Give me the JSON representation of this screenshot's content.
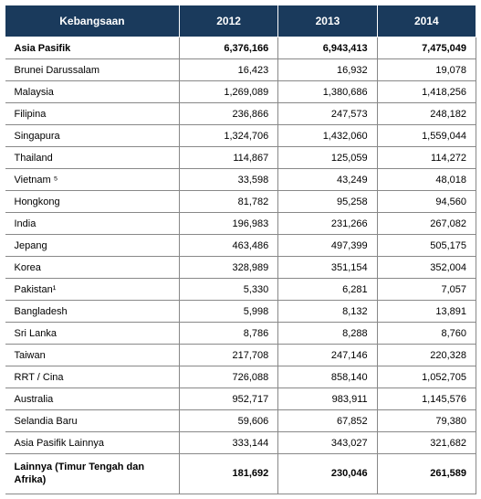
{
  "table": {
    "header_bg": "#1a3a5c",
    "header_fg": "#ffffff",
    "border_color": "#888888",
    "columns": [
      "Kebangsaan",
      "2012",
      "2013",
      "2014"
    ],
    "rows": [
      {
        "label": "Asia Pasifik",
        "v2012": "6,376,166",
        "v2013": "6,943,413",
        "v2014": "7,475,049",
        "bold": true
      },
      {
        "label": "Brunei  Darussalam",
        "v2012": "16,423",
        "v2013": "16,932",
        "v2014": "19,078",
        "bold": false
      },
      {
        "label": "Malaysia",
        "v2012": "1,269,089",
        "v2013": "1,380,686",
        "v2014": "1,418,256",
        "bold": false
      },
      {
        "label": "Filipina",
        "v2012": "236,866",
        "v2013": "247,573",
        "v2014": "248,182",
        "bold": false
      },
      {
        "label": "Singapura",
        "v2012": "1,324,706",
        "v2013": "1,432,060",
        "v2014": "1,559,044",
        "bold": false
      },
      {
        "label": "Thailand",
        "v2012": "114,867",
        "v2013": "125,059",
        "v2014": "114,272",
        "bold": false
      },
      {
        "label": "Vietnam ⁵",
        "v2012": "33,598",
        "v2013": "43,249",
        "v2014": "48,018",
        "bold": false
      },
      {
        "label": "Hongkong",
        "v2012": "81,782",
        "v2013": "95,258",
        "v2014": "94,560",
        "bold": false
      },
      {
        "label": "India",
        "v2012": "196,983",
        "v2013": "231,266",
        "v2014": "267,082",
        "bold": false
      },
      {
        "label": "Jepang",
        "v2012": "463,486",
        "v2013": "497,399",
        "v2014": "505,175",
        "bold": false
      },
      {
        "label": "Korea",
        "v2012": "328,989",
        "v2013": "351,154",
        "v2014": "352,004",
        "bold": false
      },
      {
        "label": "Pakistan¹",
        "v2012": "5,330",
        "v2013": "6,281",
        "v2014": "7,057",
        "bold": false
      },
      {
        "label": "Bangladesh",
        "v2012": "5,998",
        "v2013": "8,132",
        "v2014": "13,891",
        "bold": false
      },
      {
        "label": "Sri Lanka",
        "v2012": "8,786",
        "v2013": "8,288",
        "v2014": "8,760",
        "bold": false
      },
      {
        "label": "Taiwan",
        "v2012": "217,708",
        "v2013": "247,146",
        "v2014": "220,328",
        "bold": false
      },
      {
        "label": "RRT / Cina",
        "v2012": "726,088",
        "v2013": "858,140",
        "v2014": "1,052,705",
        "bold": false
      },
      {
        "label": "Australia",
        "v2012": "952,717",
        "v2013": "983,911",
        "v2014": "1,145,576",
        "bold": false
      },
      {
        "label": "Selandia Baru",
        "v2012": "59,606",
        "v2013": "67,852",
        "v2014": "79,380",
        "bold": false
      },
      {
        "label": "Asia Pasifik Lainnya",
        "v2012": "333,144",
        "v2013": "343,027",
        "v2014": "321,682",
        "bold": false
      },
      {
        "label": "Lainnya (Timur Tengah dan Afrika)",
        "v2012": "181,692",
        "v2013": "230,046",
        "v2014": "261,589",
        "bold": true,
        "total": true
      }
    ]
  }
}
